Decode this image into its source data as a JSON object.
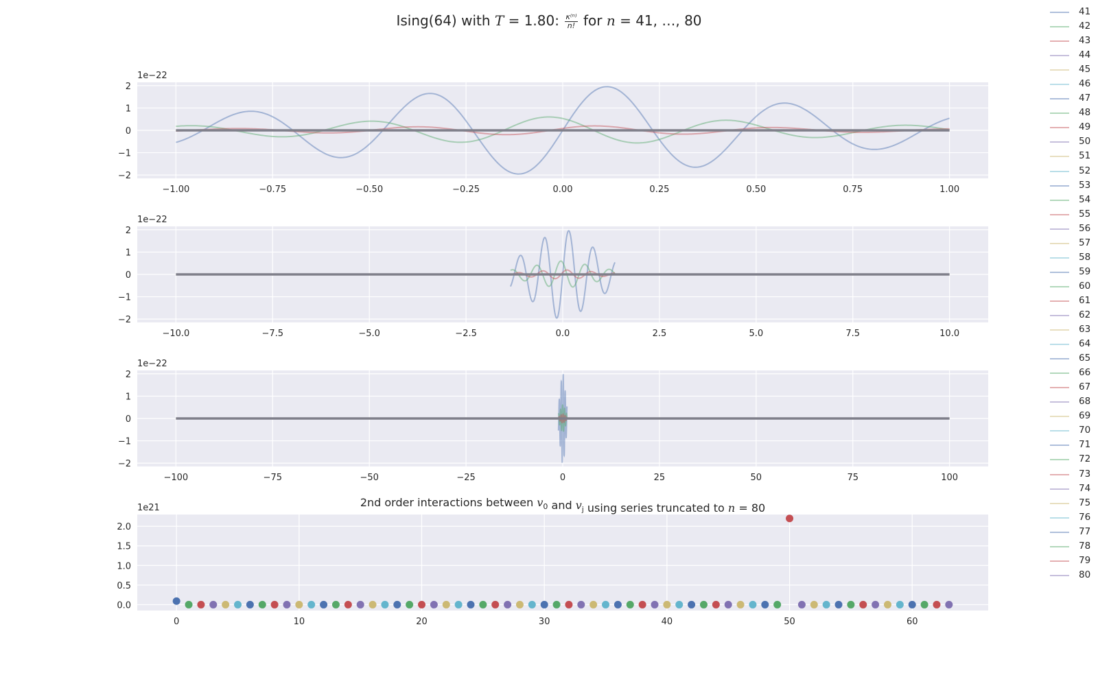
{
  "figure": {
    "title_parts": {
      "prefix": "Ising(64) with ",
      "T_symbol": "T",
      "T_value": " = 1.80: ",
      "frac_num": "κ⁽ⁿ⁾",
      "frac_den": "n!",
      "middle": " for ",
      "n_symbol": "n",
      "suffix": " = 41, …, 80"
    },
    "colors": {
      "axes_bg": "#eaeaf2",
      "grid": "#ffffff",
      "palette": [
        "#4c72b0",
        "#55a868",
        "#c44e52",
        "#8172b2",
        "#ccb974",
        "#64b5cd"
      ],
      "mean_line": "#7f7f8a"
    }
  },
  "legend": {
    "placement": "right-outside",
    "entries": [
      "41",
      "42",
      "43",
      "44",
      "45",
      "46",
      "47",
      "48",
      "49",
      "50",
      "51",
      "52",
      "53",
      "54",
      "55",
      "56",
      "57",
      "58",
      "59",
      "60",
      "61",
      "62",
      "63",
      "64",
      "65",
      "66",
      "67",
      "68",
      "69",
      "70",
      "71",
      "72",
      "73",
      "74",
      "75",
      "76",
      "77",
      "78",
      "79",
      "80"
    ]
  },
  "chart_data": [
    {
      "type": "line",
      "title": "",
      "xlabel": "",
      "ylabel": "",
      "offset_label": "1e−22",
      "xlim": [
        -1.1,
        1.1
      ],
      "ylim": [
        -2.15,
        2.15
      ],
      "xticks": [
        -1.0,
        -0.75,
        -0.5,
        -0.25,
        0.0,
        0.25,
        0.5,
        0.75,
        1.0
      ],
      "xtick_labels": [
        "−1.00",
        "−0.75",
        "−0.50",
        "−0.25",
        "0.00",
        "0.25",
        "0.50",
        "0.75",
        "1.00"
      ],
      "yticks": [
        -2,
        -1,
        0,
        1,
        2
      ],
      "ytick_labels": [
        "−2",
        "−1",
        "0",
        "1",
        "2"
      ],
      "grid": true,
      "x_domain": [
        -1.0,
        1.0
      ],
      "series_prominent": [
        {
          "legend": "41",
          "color_index": 0,
          "amplitude_peak": 2.0,
          "frequency_scale": 1.0
        },
        {
          "legend": "42",
          "color_index": 1,
          "amplitude_peak": 0.6,
          "frequency_scale": 1.0
        },
        {
          "legend": "43",
          "color_index": 2,
          "amplitude_peak": 0.2,
          "frequency_scale": 1.0
        }
      ]
    },
    {
      "type": "line",
      "title": "",
      "xlabel": "",
      "ylabel": "",
      "offset_label": "1e−22",
      "xlim": [
        -11.0,
        11.0
      ],
      "ylim": [
        -2.15,
        2.15
      ],
      "xticks": [
        -10.0,
        -7.5,
        -5.0,
        -2.5,
        0.0,
        2.5,
        5.0,
        7.5,
        10.0
      ],
      "xtick_labels": [
        "−10.0",
        "−7.5",
        "−5.0",
        "−2.5",
        "0.0",
        "2.5",
        "5.0",
        "7.5",
        "10.0"
      ],
      "yticks": [
        -2,
        -1,
        0,
        1,
        2
      ],
      "ytick_labels": [
        "−2",
        "−1",
        "0",
        "1",
        "2"
      ],
      "grid": true,
      "x_domain": [
        -10.0,
        10.0
      ]
    },
    {
      "type": "line",
      "title": "",
      "xlabel": "",
      "ylabel": "",
      "offset_label": "1e−22",
      "xlim": [
        -110,
        110
      ],
      "ylim": [
        -2.15,
        2.15
      ],
      "xticks": [
        -100,
        -75,
        -50,
        -25,
        0,
        25,
        50,
        75,
        100
      ],
      "xtick_labels": [
        "−100",
        "−75",
        "−50",
        "−25",
        "0",
        "25",
        "50",
        "75",
        "100"
      ],
      "yticks": [
        -2,
        -1,
        0,
        1,
        2
      ],
      "ytick_labels": [
        "−2",
        "−1",
        "0",
        "1",
        "2"
      ],
      "grid": true,
      "x_domain": [
        -100,
        100
      ]
    },
    {
      "type": "scatter",
      "title_parts": {
        "prefix": "2nd order interactions between ",
        "v0": "v",
        "v0_sub": "0",
        "middle": " and ",
        "vj": "v",
        "vj_sub": "j",
        "suffix_a": " using series truncated to ",
        "n_symbol": "n",
        "suffix_b": " = 80"
      },
      "xlabel": "",
      "ylabel": "",
      "offset_label": "1e21",
      "xlim": [
        -3.2,
        66.2
      ],
      "ylim": [
        -0.15,
        2.3
      ],
      "xticks": [
        0,
        10,
        20,
        30,
        40,
        50,
        60
      ],
      "xtick_labels": [
        "0",
        "10",
        "20",
        "30",
        "40",
        "50",
        "60"
      ],
      "yticks": [
        0.0,
        0.5,
        1.0,
        1.5,
        2.0
      ],
      "ytick_labels": [
        "0.0",
        "0.5",
        "1.0",
        "1.5",
        "2.0"
      ],
      "grid": true,
      "x": [
        0,
        1,
        2,
        3,
        4,
        5,
        6,
        7,
        8,
        9,
        10,
        11,
        12,
        13,
        14,
        15,
        16,
        17,
        18,
        19,
        20,
        21,
        22,
        23,
        24,
        25,
        26,
        27,
        28,
        29,
        30,
        31,
        32,
        33,
        34,
        35,
        36,
        37,
        38,
        39,
        40,
        41,
        42,
        43,
        44,
        45,
        46,
        47,
        48,
        49,
        50,
        51,
        52,
        53,
        54,
        55,
        56,
        57,
        58,
        59,
        60,
        61,
        62,
        63
      ],
      "y": [
        0.09,
        0,
        0,
        0,
        0,
        0,
        0,
        0,
        0,
        0,
        0,
        0,
        0,
        0,
        0,
        0,
        0,
        0,
        0,
        0,
        0,
        0,
        0,
        0,
        0,
        0,
        0,
        0,
        0,
        0,
        0,
        0,
        0,
        0,
        0,
        0,
        0,
        0,
        0,
        0,
        0,
        0,
        0,
        0,
        0,
        0,
        0,
        0,
        0,
        0,
        2.2,
        0,
        0,
        0,
        0,
        0,
        0,
        0,
        0,
        0,
        0,
        0,
        0,
        0
      ]
    }
  ]
}
